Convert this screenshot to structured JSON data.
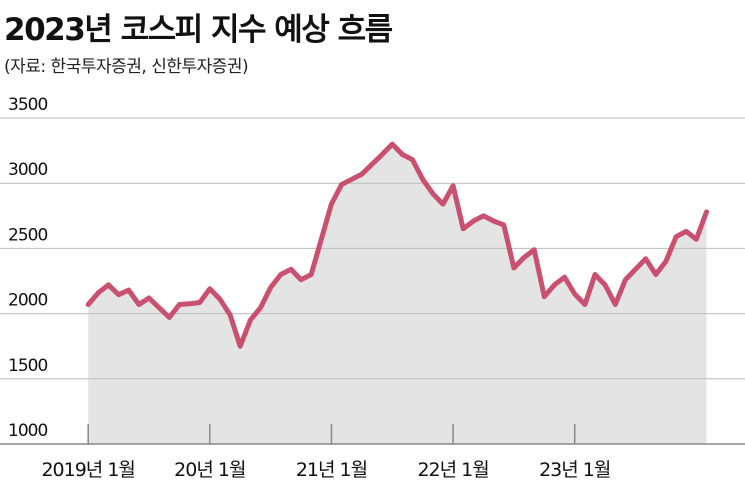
{
  "chart_data": {
    "type": "area",
    "title": "2023년 코스피 지수 예상 흐름",
    "subtitle": "(자료: 한국투자증권, 신한투자증권)",
    "x": [
      0,
      1,
      2,
      3,
      4,
      5,
      6,
      7,
      8,
      9,
      10,
      11,
      12,
      13,
      14,
      15,
      16,
      17,
      18,
      19,
      20,
      21,
      22,
      23,
      24,
      25,
      26,
      27,
      28,
      29,
      30,
      31,
      32,
      33,
      34,
      35,
      36,
      37,
      38,
      39,
      40,
      41,
      42,
      43,
      44,
      45,
      46,
      47,
      48,
      49,
      50,
      51,
      52,
      53,
      54,
      55,
      56,
      57,
      58,
      59,
      60,
      61
    ],
    "series": [
      {
        "color": "#c9516f",
        "fill": "#e4e4e4",
        "values": [
          2070,
          2160,
          2220,
          2145,
          2180,
          2070,
          2120,
          2045,
          1970,
          2070,
          2075,
          2085,
          2190,
          2110,
          1990,
          1750,
          1950,
          2045,
          2200,
          2300,
          2340,
          2260,
          2300,
          2570,
          2840,
          2990,
          3030,
          3070,
          3145,
          3220,
          3300,
          3220,
          3180,
          3030,
          2920,
          2840,
          2980,
          2650,
          2710,
          2750,
          2710,
          2680,
          2350,
          2430,
          2490,
          2130,
          2220,
          2280,
          2150,
          2070,
          2300,
          2220,
          2070,
          2260,
          2340,
          2420,
          2300,
          2400,
          2590,
          2630,
          2570,
          2780
        ]
      }
    ],
    "xlim": [
      -8.7,
      64.8
    ],
    "xticks": [
      {
        "value": 0,
        "label": "2019년 1월"
      },
      {
        "value": 12,
        "label": "20년 1월"
      },
      {
        "value": 24,
        "label": "21년 1월"
      },
      {
        "value": 36,
        "label": "22년 1월"
      },
      {
        "value": 48,
        "label": "23년 1월"
      }
    ],
    "ylim": [
      1000,
      3500
    ],
    "yticks": [
      1000,
      1500,
      2000,
      2500,
      3000,
      3500
    ],
    "grid": true
  }
}
